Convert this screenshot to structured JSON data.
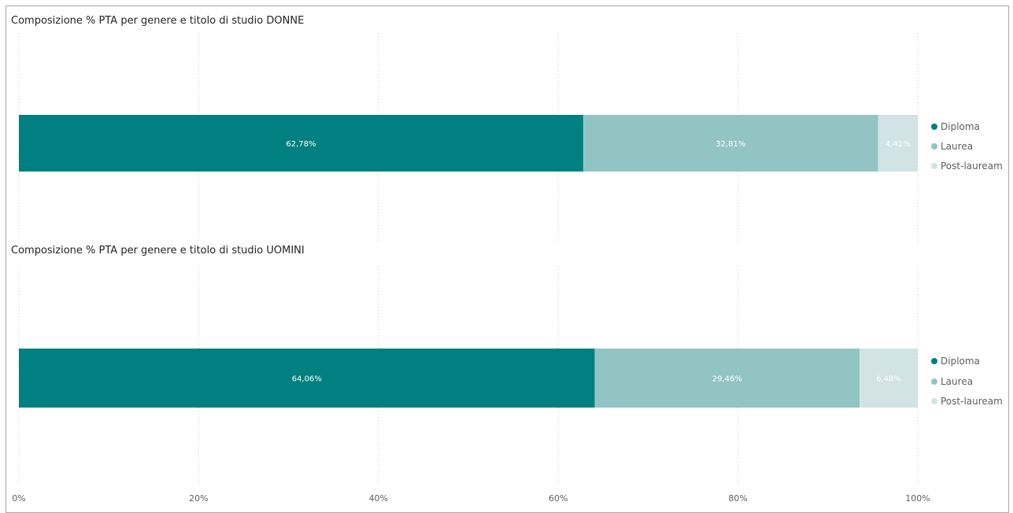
{
  "chart_data": [
    {
      "type": "bar",
      "orientation": "horizontal",
      "stacked": "100%",
      "title": "Composizione % PTA per genere e titolo di studio DONNE",
      "series": [
        {
          "name": "Diploma",
          "values": [
            62.78
          ],
          "label": "62,78%",
          "color": "#008080"
        },
        {
          "name": "Laurea",
          "values": [
            32.81
          ],
          "label": "32,81%",
          "color": "#93c4c4"
        },
        {
          "name": "Post-lauream",
          "values": [
            4.41
          ],
          "label": "4,41%",
          "color": "#d1e3e5"
        }
      ],
      "xlim": [
        0,
        100
      ],
      "grid": true,
      "legend": "right"
    },
    {
      "type": "bar",
      "orientation": "horizontal",
      "stacked": "100%",
      "title": "Composizione % PTA per genere e titolo di studio UOMINI",
      "series": [
        {
          "name": "Diploma",
          "values": [
            64.06
          ],
          "label": "64,06%",
          "color": "#008080"
        },
        {
          "name": "Laurea",
          "values": [
            29.46
          ],
          "label": "29,46%",
          "color": "#93c4c4"
        },
        {
          "name": "Post-lauream",
          "values": [
            6.48
          ],
          "label": "6,48%",
          "color": "#d1e3e5"
        }
      ],
      "xlim": [
        0,
        100
      ],
      "grid": true,
      "legend": "right"
    }
  ],
  "x_axis": {
    "ticks": [
      0,
      20,
      40,
      60,
      80,
      100
    ],
    "tick_labels": [
      "0%",
      "20%",
      "40%",
      "60%",
      "80%",
      "100%"
    ]
  }
}
